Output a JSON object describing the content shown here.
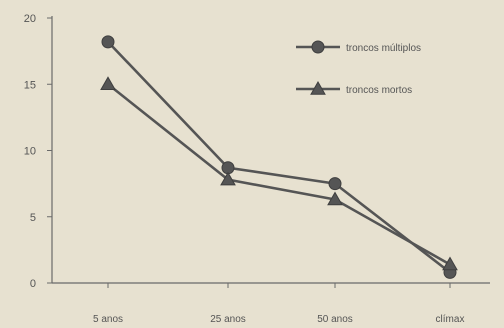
{
  "chart_data": {
    "type": "line",
    "title": "",
    "xlabel": "",
    "ylabel": "",
    "categories": [
      "5 anos",
      "25 anos",
      "50 anos",
      "clímax"
    ],
    "ylim": [
      0,
      20
    ],
    "yticks": [
      0,
      5,
      10,
      15,
      20
    ],
    "grid": false,
    "legend_position": "top-right",
    "series": [
      {
        "name": "troncos múltiplos",
        "marker": "circle",
        "values": [
          18.2,
          8.7,
          7.5,
          0.8
        ],
        "color": "#555555"
      },
      {
        "name": "troncos mortos",
        "marker": "triangle",
        "values": [
          15.0,
          7.8,
          6.3,
          1.4
        ],
        "color": "#555555"
      }
    ]
  }
}
